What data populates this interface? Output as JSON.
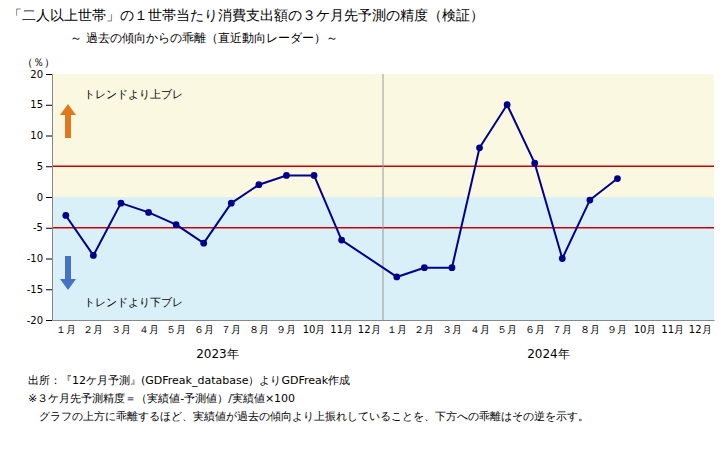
{
  "chart_data": {
    "type": "line",
    "title": "「二人以上世帯」の１世帯当たり消費支出額の３ケ月先予測の精度（検証）",
    "subtitle": "～ 過去の傾向からの乖離（直近動向レーダー）～",
    "ylabel": "（％）",
    "categories": [
      "１月",
      "２月",
      "３月",
      "４月",
      "５月",
      "６月",
      "７月",
      "８月",
      "９月",
      "10月",
      "11月",
      "12月",
      "１月",
      "２月",
      "３月",
      "４月",
      "５月",
      "６月",
      "７月",
      "８月",
      "９月",
      "10月",
      "11月",
      "12月"
    ],
    "groups": [
      "2023年",
      "2024年"
    ],
    "values": [
      -3.0,
      -9.5,
      -1.0,
      -2.5,
      -4.5,
      -7.5,
      -1.0,
      2.0,
      3.5,
      3.5,
      -7.0,
      null,
      -13.0,
      -11.5,
      -11.5,
      8.0,
      15.0,
      5.5,
      -10.0,
      -0.5,
      3.0,
      null,
      null,
      null
    ],
    "color": "#00008B",
    "marker": "circle",
    "ylim": [
      -20,
      20
    ],
    "yticks": [
      -20,
      -15,
      -10,
      -5,
      0,
      5,
      10,
      15,
      20
    ],
    "grid": false,
    "bands": [
      {
        "from": 0,
        "to": 20,
        "color": "#faf8e0"
      },
      {
        "from": -20,
        "to": 0,
        "color": "#daf0f8"
      }
    ],
    "reference_lines": [
      {
        "value": 5,
        "color": "#cc0000"
      },
      {
        "value": -5,
        "color": "#cc0000"
      }
    ],
    "annotations": [
      {
        "text": "トレンドより上ブレ",
        "arrow": "up",
        "color": "#e07820"
      },
      {
        "text": "トレンドより下ブレ",
        "arrow": "down",
        "color": "#4472c4"
      }
    ],
    "notes": [
      "出所：『12ケ月予測』(GDFreak_database）よりGDFreak作成",
      "※３ケ月先予測精度＝（実績値-予測値）/実績値×100",
      "　グラフの上方に乖離するほど、実績値が過去の傾向より上振れしていることを、下方への乖離はその逆を示す。"
    ]
  }
}
